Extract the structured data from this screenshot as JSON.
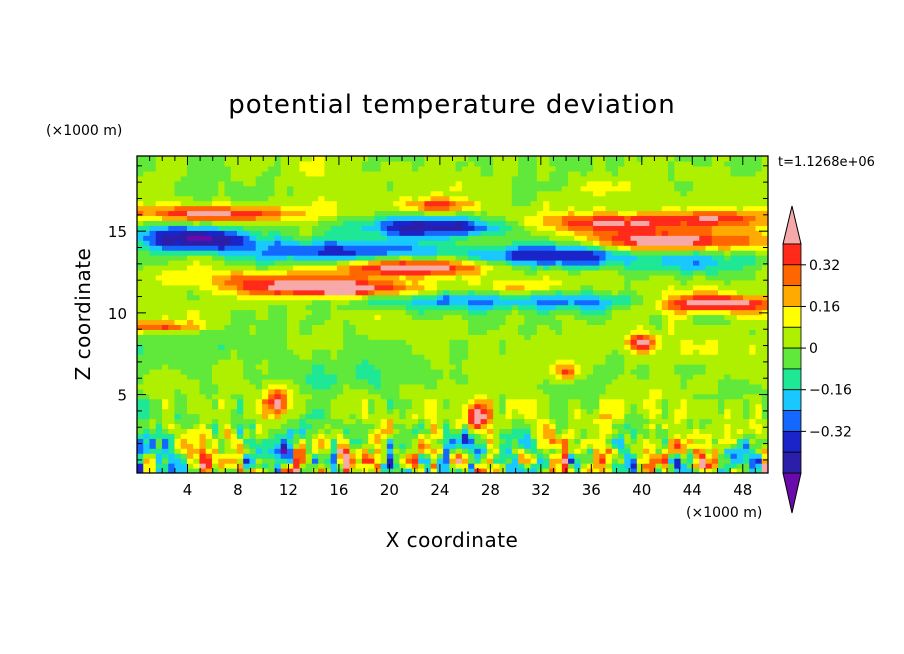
{
  "chart_data": {
    "type": "heatmap",
    "title": "potential temperature deviation",
    "xlabel": "X coordinate",
    "ylabel": "Z coordinate",
    "x_unit": "(×1000 m)",
    "y_unit": "(×1000 m)",
    "time_label": "t=1.1268e+06",
    "xlim": [
      0,
      50
    ],
    "ylim": [
      0.2,
      19.6
    ],
    "x_ticks": [
      4,
      8,
      12,
      16,
      20,
      24,
      28,
      32,
      36,
      40,
      44,
      48
    ],
    "y_ticks": [
      5,
      10,
      15
    ],
    "colorbar": {
      "levels": [
        -0.48,
        -0.4,
        -0.32,
        -0.24,
        -0.16,
        -0.08,
        0,
        0.08,
        0.16,
        0.24,
        0.32,
        0.4,
        0.48
      ],
      "tick_labels": [
        "−0.32",
        "−0.16",
        "0",
        "0.16",
        "0.32"
      ],
      "tick_values": [
        -0.32,
        -0.16,
        0,
        0.16,
        0.32
      ],
      "colors": [
        "#6a0aab",
        "#2b1ea8",
        "#1a24c8",
        "#1468ff",
        "#19c8ff",
        "#1ee896",
        "#60e83a",
        "#aef000",
        "#ffff00",
        "#ffaa00",
        "#ff6600",
        "#ff2a1a",
        "#f7a8a8"
      ]
    }
  }
}
